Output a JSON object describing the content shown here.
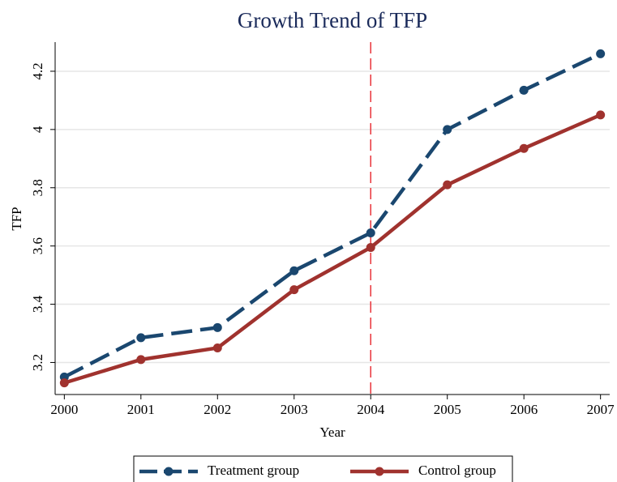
{
  "chart_data": {
    "type": "line",
    "title": "Growth Trend of TFP",
    "x_label": "Year",
    "y_label": "TFP",
    "x": [
      2000,
      2001,
      2002,
      2003,
      2004,
      2005,
      2006,
      2007
    ],
    "series": [
      {
        "name": "Treatment group",
        "color": "#1a476f",
        "dash": true,
        "values": [
          3.15,
          3.285,
          3.32,
          3.515,
          3.645,
          4.0,
          4.135,
          4.26
        ]
      },
      {
        "name": "Control group",
        "color": "#a0322e",
        "dash": false,
        "values": [
          3.13,
          3.21,
          3.25,
          3.45,
          3.595,
          3.81,
          3.935,
          4.05
        ]
      }
    ],
    "xlim": [
      1999.88,
      2007.12
    ],
    "xticks": [
      2000,
      2001,
      2002,
      2003,
      2004,
      2005,
      2006,
      2007
    ],
    "ylim": [
      3.09,
      4.3
    ],
    "yticks": [
      3.2,
      3.4,
      3.6,
      3.8,
      4,
      4.2
    ],
    "grid": true,
    "vline": 2004,
    "vline_color": "#e8343a",
    "legend": "bottom"
  }
}
